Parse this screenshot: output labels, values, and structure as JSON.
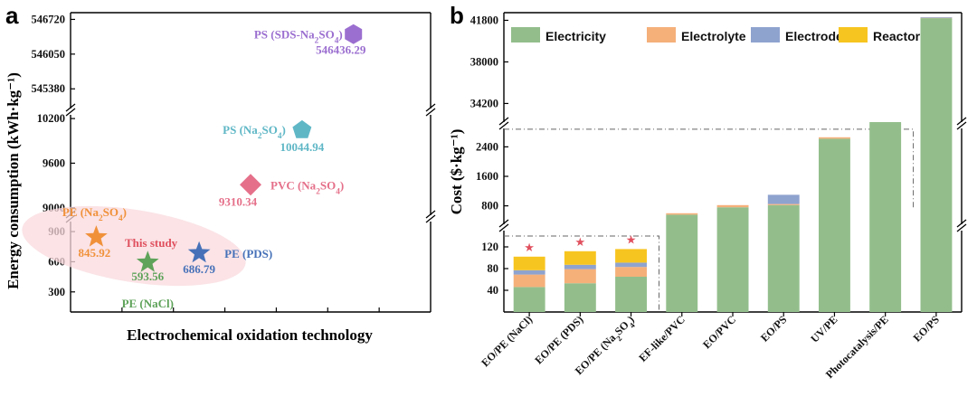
{
  "panel_a": {
    "letter": "a",
    "ylabel": "Energy consumption (kWh·kg⁻¹)",
    "xlabel": "Electrochemical oxidation technology",
    "this_study_label": "This study"
  },
  "panel_b": {
    "letter": "b",
    "ylabel": "Cost ($·kg⁻¹)"
  },
  "chart_data": [
    {
      "type": "scatter",
      "panel": "a",
      "title": "",
      "xlabel": "Electrochemical oxidation technology",
      "ylabel": "Energy consumption (kWh·kg⁻¹)",
      "y_segments": [
        {
          "range": [
            100,
            1000
          ],
          "ticks": [
            300,
            600,
            900
          ]
        },
        {
          "range": [
            8900,
            10250
          ],
          "ticks": [
            9000,
            9600,
            10200
          ]
        },
        {
          "range": [
            545000,
            546850
          ],
          "ticks": [
            545380,
            546050,
            546720
          ]
        }
      ],
      "annotation": "This study",
      "points": [
        {
          "label": "PE (Na₂SO₄)",
          "value_label": "845.92",
          "value": 845.92,
          "marker": "star",
          "color": "#F0913A",
          "x_index": 0
        },
        {
          "label": "PE (NaCl)",
          "value_label": "593.56",
          "value": 593.56,
          "marker": "star",
          "color": "#5FA35A",
          "x_index": 1
        },
        {
          "label": "PE (PDS)",
          "value_label": "686.79",
          "value": 686.79,
          "marker": "star",
          "color": "#4671B8",
          "x_index": 2
        },
        {
          "label": "PVC (Na₂SO₄)",
          "value_label": "9310.34",
          "value": 9310.34,
          "marker": "diamond",
          "color": "#E5708A",
          "x_index": 3
        },
        {
          "label": "PS (Na₂SO₄)",
          "value_label": "10044.94",
          "value": 10044.94,
          "marker": "pentagon",
          "color": "#5FB7C6",
          "x_index": 4
        },
        {
          "label": "PS (SDS-Na₂SO₄)",
          "value_label": "546436.29",
          "value": 546436.29,
          "marker": "hexagon",
          "color": "#9B6FD0",
          "x_index": 5
        }
      ]
    },
    {
      "type": "bar",
      "panel": "b",
      "stacked": true,
      "title": "",
      "ylabel": "Cost ($·kg⁻¹)",
      "legend_position": "top",
      "y_segments": [
        {
          "range": [
            0,
            150
          ],
          "ticks": [
            40,
            80,
            120
          ]
        },
        {
          "range": [
            300,
            2900
          ],
          "ticks": [
            800,
            1600,
            2400
          ]
        },
        {
          "range": [
            32500,
            42500
          ],
          "ticks": [
            34200,
            38000,
            41800
          ]
        }
      ],
      "categories": [
        "EO/PE (NaCl)",
        "EO/PE (PDS)",
        "EO/PE (Na₂SO₄)",
        "EF-like/PVC",
        "EO/PVC",
        "EO/PS",
        "UV/PE",
        "Photocatalysis/PE",
        "EO/PS"
      ],
      "starred_categories": [
        0,
        1,
        2
      ],
      "series": [
        {
          "name": "Electricity",
          "color": "#93BE8C",
          "values": [
            46,
            53,
            65,
            560,
            760,
            820,
            2620,
            2920,
            42000
          ]
        },
        {
          "name": "Electrolyte",
          "color": "#F5B07A",
          "values": [
            23,
            26,
            18,
            40,
            60,
            30,
            40,
            40,
            30
          ]
        },
        {
          "name": "Electrode",
          "color": "#8FA3CF",
          "values": [
            8,
            8,
            8,
            0,
            0,
            250,
            0,
            0,
            60
          ]
        },
        {
          "name": "Reactor",
          "color": "#F7C520",
          "values": [
            25,
            25,
            25,
            0,
            0,
            0,
            0,
            0,
            0
          ]
        }
      ]
    }
  ]
}
